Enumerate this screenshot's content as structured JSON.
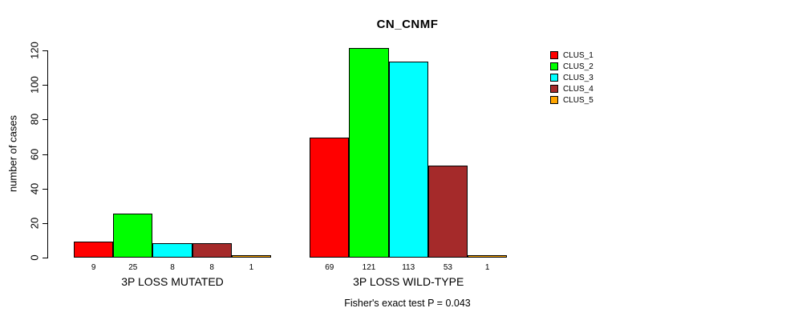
{
  "chart_data": {
    "type": "bar",
    "title": "CN_CNMF",
    "ylabel": "number of cases",
    "xlabel": "",
    "ylim": [
      0,
      120
    ],
    "yticks": [
      0,
      20,
      40,
      60,
      80,
      100,
      120
    ],
    "grid": false,
    "legend_position": "right",
    "categories": [
      "3P LOSS MUTATED",
      "3P LOSS WILD-TYPE"
    ],
    "series": [
      {
        "name": "CLUS_1",
        "color": "#FF0000",
        "values": [
          9,
          69
        ]
      },
      {
        "name": "CLUS_2",
        "color": "#00FF00",
        "values": [
          25,
          121
        ]
      },
      {
        "name": "CLUS_3",
        "color": "#00FFFF",
        "values": [
          8,
          113
        ]
      },
      {
        "name": "CLUS_4",
        "color": "#A52A2A",
        "values": [
          8,
          53
        ]
      },
      {
        "name": "CLUS_5",
        "color": "#FFA500",
        "values": [
          1,
          1
        ]
      }
    ],
    "bar_value_labels": [
      [
        "9",
        "25",
        "8",
        "8",
        "1"
      ],
      [
        "69",
        "121",
        "113",
        "53",
        "1"
      ]
    ],
    "annotation": "Fisher's exact test P = 0.043",
    "colors": {
      "bar_border": "#000000",
      "axis": "#000000",
      "text": "#000000",
      "background": "#FFFFFF"
    }
  }
}
